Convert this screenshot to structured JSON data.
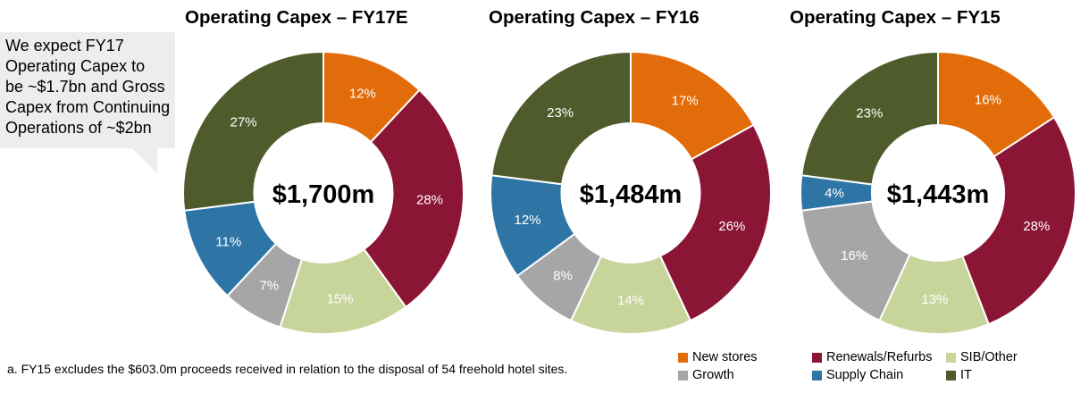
{
  "callout": {
    "lines": [
      "We expect FY17",
      "Operating Capex to",
      "be ~$1.7bn and Gross",
      "Capex from Continuing",
      "Operations of ~$2bn"
    ]
  },
  "footnote": "a. FY15 excludes the $603.0m proceeds received in relation to the disposal of 54 freehold hotel sites.",
  "legend": [
    {
      "label": "New stores",
      "color": "#E36C0A"
    },
    {
      "label": "Renewals/Refurbs",
      "color": "#8B1535"
    },
    {
      "label": "SIB/Other",
      "color": "#C8D59A"
    },
    {
      "label": "Growth",
      "color": "#A6A6A6"
    },
    {
      "label": "Supply Chain",
      "color": "#2E75A6"
    },
    {
      "label": "IT",
      "color": "#4F5B2A"
    }
  ],
  "chart_data": [
    {
      "type": "pie",
      "title": "Operating Capex – FY17E",
      "center_label": "$1,700m",
      "categories": [
        "New stores",
        "Renewals/Refurbs",
        "SIB/Other",
        "Growth",
        "Supply Chain",
        "IT"
      ],
      "values": [
        12,
        28,
        15,
        7,
        11,
        27
      ],
      "labels": [
        "12%",
        "28%",
        "15%",
        "7%",
        "11%",
        "27%"
      ]
    },
    {
      "type": "pie",
      "title": "Operating Capex – FY16",
      "center_label": "$1,484m",
      "categories": [
        "New stores",
        "Renewals/Refurbs",
        "SIB/Other",
        "Growth",
        "Supply Chain",
        "IT"
      ],
      "values": [
        17,
        26,
        14,
        8,
        12,
        23
      ],
      "labels": [
        "17%",
        "26%",
        "14%",
        "8%",
        "12%",
        "23%"
      ]
    },
    {
      "type": "pie",
      "title": "Operating Capex – FY15",
      "center_label": "$1,443m",
      "categories": [
        "New stores",
        "Renewals/Refurbs",
        "SIB/Other",
        "Growth",
        "Supply Chain",
        "IT"
      ],
      "values": [
        16,
        28,
        13,
        16,
        4,
        23
      ],
      "labels": [
        "16%",
        "28%",
        "13%",
        "16%",
        "4%",
        "23%"
      ]
    }
  ]
}
